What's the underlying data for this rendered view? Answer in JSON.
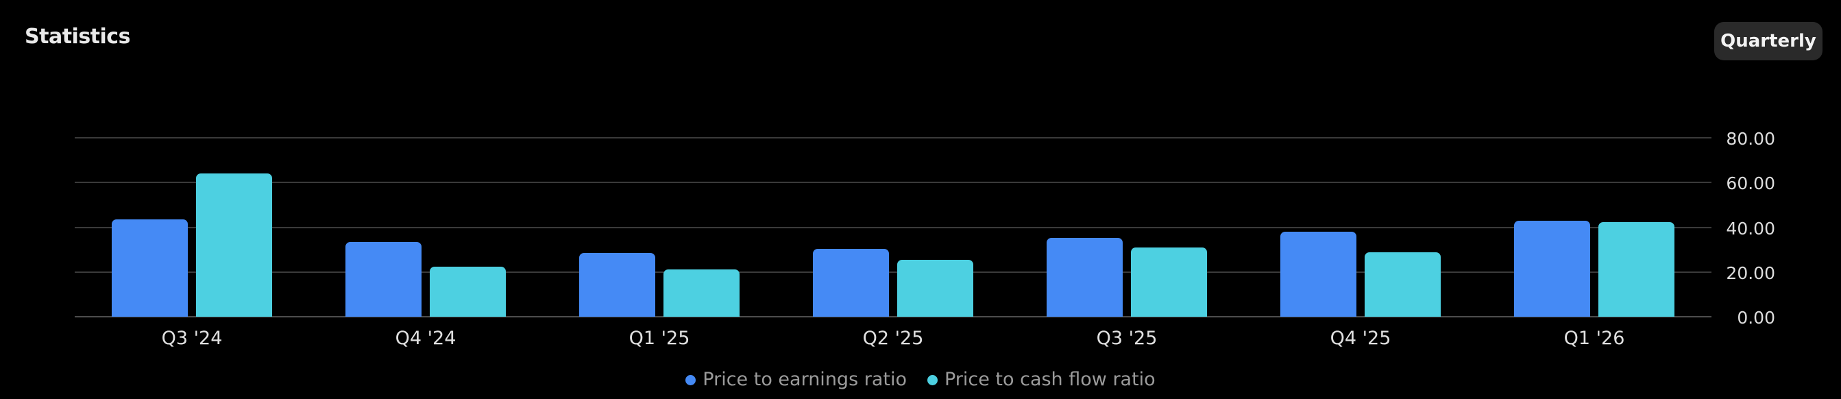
{
  "header": {
    "title": "Statistics",
    "period_button": "Quarterly"
  },
  "chart_data": {
    "type": "bar",
    "title": "",
    "xlabel": "",
    "ylabel": "",
    "categories": [
      "Q3 '24",
      "Q4 '24",
      "Q1 '25",
      "Q2 '25",
      "Q3 '25",
      "Q4 '25",
      "Q1 '26"
    ],
    "series": [
      {
        "name": "Price to earnings ratio",
        "color": "#458af5",
        "values": [
          43.5,
          33.4,
          28.5,
          30.3,
          35.2,
          38.0,
          42.9
        ]
      },
      {
        "name": "Price to cash flow ratio",
        "color": "#4dd0e1",
        "values": [
          64.0,
          22.4,
          21.2,
          25.4,
          31.0,
          28.8,
          42.3
        ]
      }
    ],
    "ylim": [
      0,
      80
    ],
    "yticks": [
      0,
      20,
      40,
      60,
      80
    ],
    "ytick_labels": [
      "0.00",
      "20.00",
      "40.00",
      "60.00",
      "80.00"
    ],
    "grid": "horizontal",
    "legend_position": "bottom"
  },
  "colors": {
    "background": "#000000",
    "gridline": "#3a3a3a",
    "axis_baseline": "#4d4d4d",
    "axis_label": "#dcdcdc",
    "legend_text": "#9b9b9b",
    "button_background": "#2a2a2a"
  }
}
